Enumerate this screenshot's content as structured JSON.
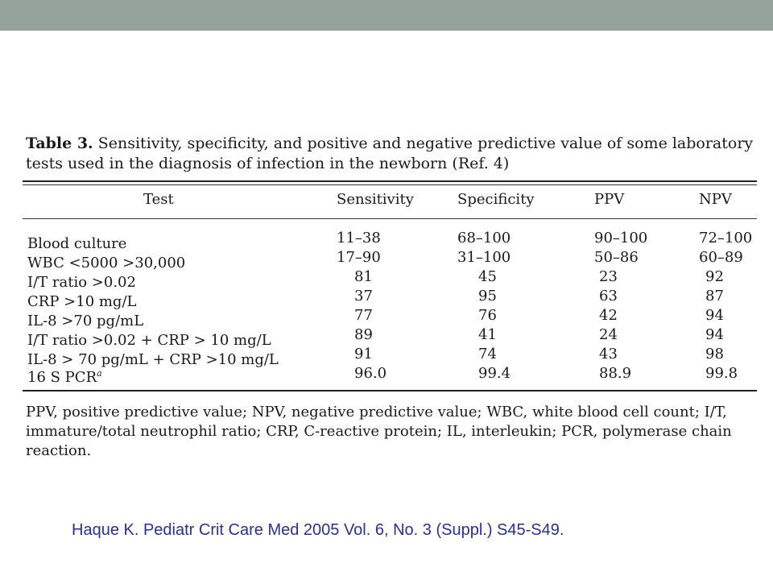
{
  "header_bar_color": "#95a39a",
  "table": {
    "caption_label": "Table 3.",
    "caption_text": "Sensitivity, specificity, and positive and negative predictive value of some laboratory tests used in the diagnosis of infection in the newborn (Ref. 4)",
    "columns": [
      "Test",
      "Sensitivity",
      "Specificity",
      "PPV",
      "NPV"
    ],
    "rows": [
      {
        "test": "Blood culture",
        "sup": "",
        "sensitivity": "11–38",
        "specificity": "68–100",
        "ppv": "90–100",
        "npv": "72–100"
      },
      {
        "test": "WBC <5000 >30,000",
        "sup": "",
        "sensitivity": "17–90",
        "specificity": "31–100",
        "ppv": "50–86",
        "npv": "60–89"
      },
      {
        "test": "I/T ratio >0.02",
        "sup": "",
        "sensitivity": "81",
        "specificity": "45",
        "ppv": "23",
        "npv": "92"
      },
      {
        "test": "CRP >10 mg/L",
        "sup": "",
        "sensitivity": "37",
        "specificity": "95",
        "ppv": "63",
        "npv": "87"
      },
      {
        "test": "IL-8 >70 pg/mL",
        "sup": "",
        "sensitivity": "77",
        "specificity": "76",
        "ppv": "42",
        "npv": "94"
      },
      {
        "test": "I/T ratio >0.02 + CRP > 10 mg/L",
        "sup": "",
        "sensitivity": "89",
        "specificity": "41",
        "ppv": "24",
        "npv": "94"
      },
      {
        "test": "IL-8 > 70 pg/mL + CRP >10 mg/L",
        "sup": "",
        "sensitivity": "91",
        "specificity": "74",
        "ppv": "43",
        "npv": "98"
      },
      {
        "test": "16 S PCR",
        "sup": "a",
        "sensitivity": "96.0",
        "specificity": "99.4",
        "ppv": "88.9",
        "npv": "99.8"
      }
    ],
    "footnote": "PPV, positive predictive value; NPV, negative predictive value; WBC, white blood cell count; I/T, immature/total neutrophil ratio; CRP, C-reactive protein; IL, interleukin; PCR, polymerase chain reaction."
  },
  "citation": "Haque K. Pediatr Crit Care Med 2005 Vol. 6, No. 3 (Suppl.) S45-S49."
}
